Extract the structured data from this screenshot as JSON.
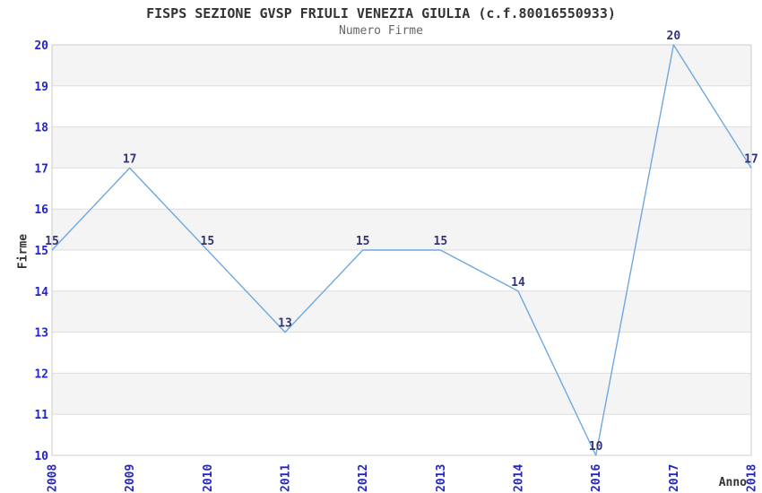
{
  "title": "FISPS SEZIONE GVSP FRIULI VENEZIA GIULIA (c.f.80016550933)",
  "subtitle": "Numero Firme",
  "chart_data": {
    "type": "line",
    "x": [
      "2008",
      "2009",
      "2010",
      "2011",
      "2012",
      "2013",
      "2014",
      "2016",
      "2017",
      "2018"
    ],
    "values": [
      15,
      17,
      15,
      13,
      15,
      15,
      14,
      10,
      20,
      17
    ],
    "title": "FISPS SEZIONE GVSP FRIULI VENEZIA GIULIA (c.f.80016550933)",
    "subtitle": "Numero Firme",
    "xlabel": "Anno",
    "ylabel": "Firme",
    "ylim": [
      10,
      20
    ],
    "ytick_step": 1,
    "grid": true,
    "alternating_bands": true,
    "legend_position": "none",
    "point_labels_visible": true,
    "colors": {
      "line": "#6FA8DF",
      "point_label": "#333377",
      "tick_label": "#2424CC",
      "axis_title": "#333333",
      "title": "#333333",
      "subtitle": "#666666",
      "band": "#F4F4F4",
      "gridline": "#DDDDDD",
      "border": "#CCCCCC",
      "background": "#FFFFFF"
    }
  }
}
